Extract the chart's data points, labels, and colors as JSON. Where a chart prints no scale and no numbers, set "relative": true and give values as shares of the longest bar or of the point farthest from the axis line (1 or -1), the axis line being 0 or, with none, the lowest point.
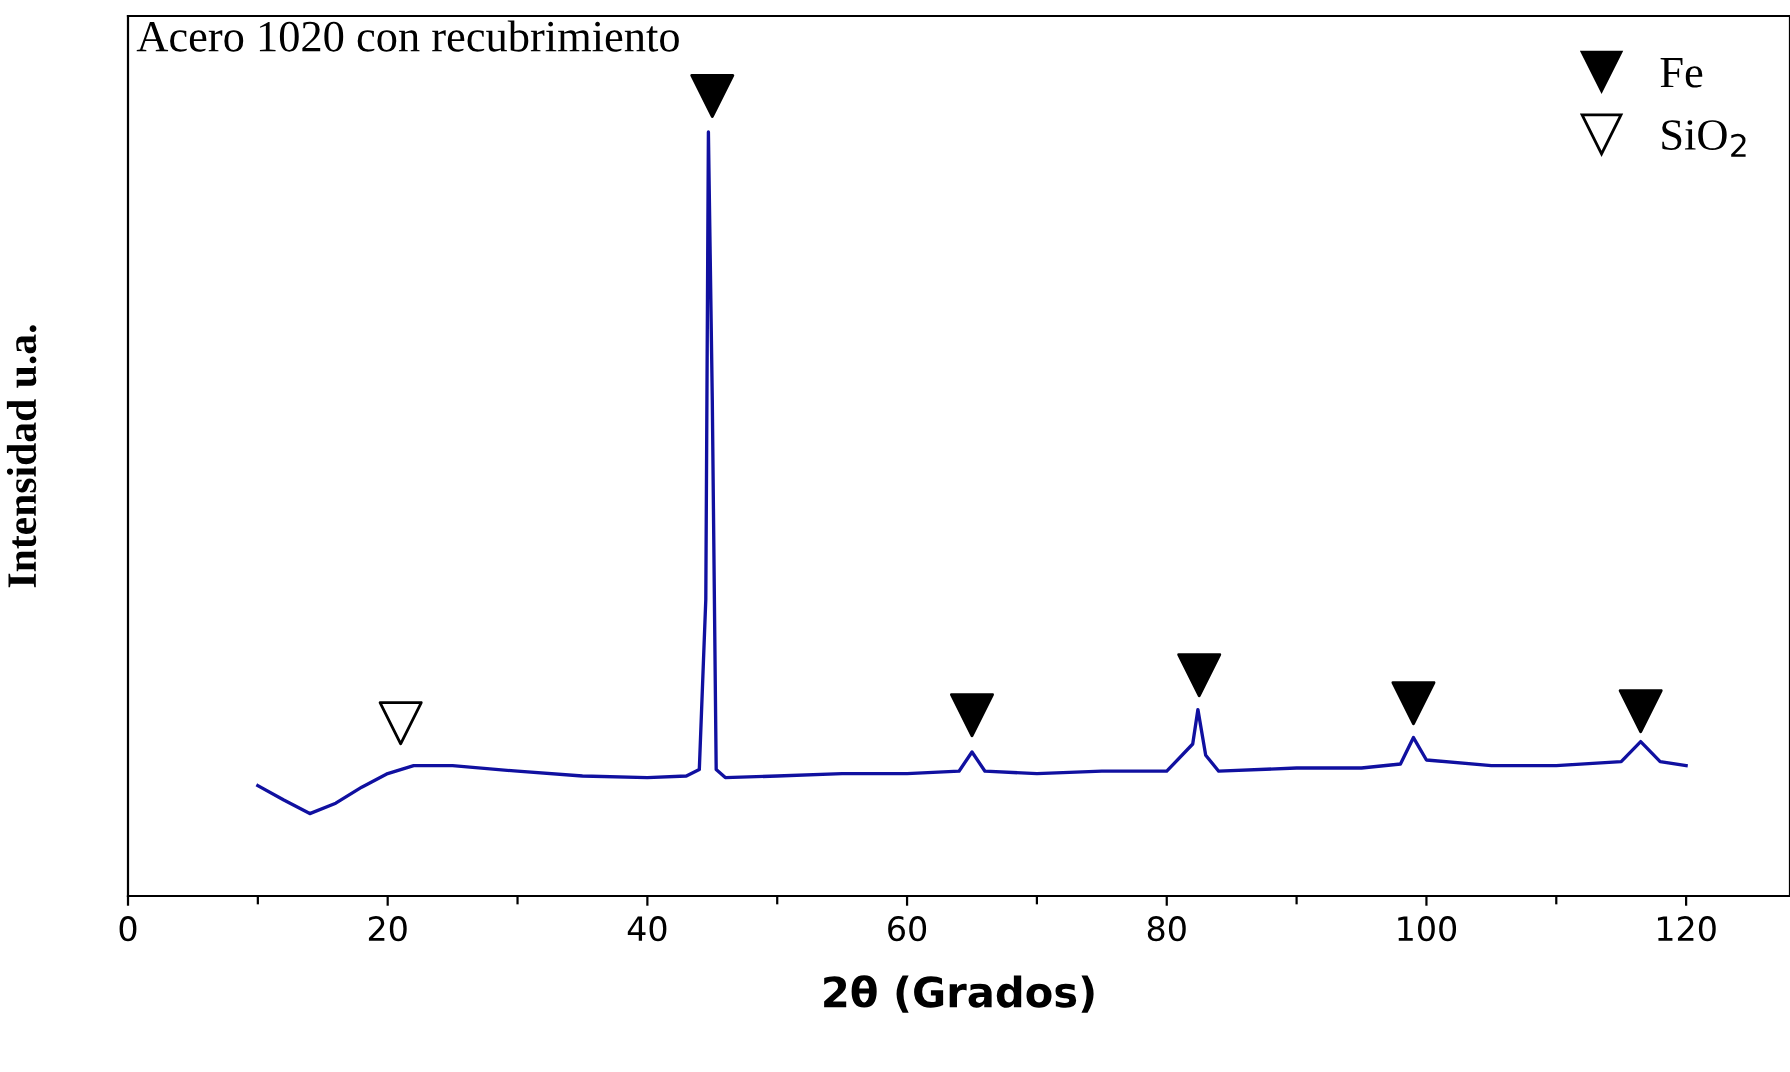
{
  "chart_data": {
    "type": "line",
    "title": "Acero 1020 con recubrimiento",
    "xlabel": "2θ (Grados)",
    "ylabel": "Intensidad u.a.",
    "relative": true,
    "xlim": [
      0,
      128
    ],
    "xticks": [
      0,
      {
        "value": 10,
        "label": null
      },
      20,
      {
        "value": 30,
        "label": null
      },
      40,
      {
        "value": 50,
        "label": null
      },
      60,
      {
        "value": 70,
        "label": null
      },
      80,
      {
        "value": 90,
        "label": null
      },
      100,
      {
        "value": 110,
        "label": null
      },
      120
    ],
    "grid": false,
    "legend": "top right",
    "tick_labels": "x",
    "series": [
      {
        "color": "#1010a0",
        "x": [
          10,
          12,
          14,
          16,
          18,
          20,
          22,
          25,
          30,
          35,
          40,
          43,
          44,
          44.5,
          44.7,
          45,
          45.3,
          46,
          50,
          55,
          60,
          64,
          65,
          66,
          70,
          75,
          80,
          82,
          82.4,
          83,
          84,
          90,
          95,
          98,
          99,
          100,
          105,
          110,
          115,
          116.5,
          118,
          120
        ],
        "values": [
          0.138,
          0.12,
          0.103,
          0.116,
          0.136,
          0.153,
          0.163,
          0.163,
          0.156,
          0.15,
          0.148,
          0.15,
          0.158,
          0.371,
          0.955,
          0.62,
          0.158,
          0.148,
          0.15,
          0.153,
          0.153,
          0.156,
          0.18,
          0.156,
          0.153,
          0.156,
          0.156,
          0.19,
          0.233,
          0.176,
          0.156,
          0.16,
          0.16,
          0.165,
          0.198,
          0.17,
          0.163,
          0.163,
          0.168,
          0.193,
          0.168,
          0.163
        ]
      },
      {
        "type": "scatter",
        "name": "Fe",
        "color": "#000000",
        "marker": "triangle",
        "x": [
          45,
          65,
          82.5,
          99,
          116.5
        ],
        "values": [
          1.0,
          0.226,
          0.276,
          0.241,
          0.231
        ]
      },
      {
        "type": "scatter",
        "name": "SiO$_{2}$",
        "color": "#ffffff",
        "marker": "triangle",
        "x": [
          21
        ],
        "values": [
          0.216
        ]
      }
    ]
  }
}
